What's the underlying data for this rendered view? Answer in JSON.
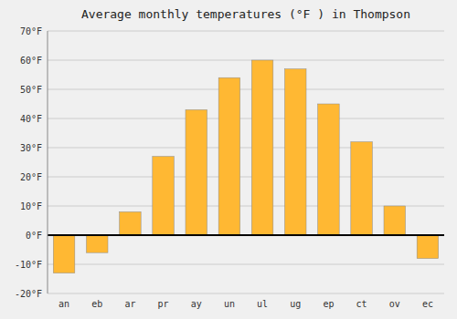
{
  "chart_data": {
    "type": "bar",
    "title": "Average monthly temperatures (°F ) in Thompson",
    "categories": [
      "an",
      "eb",
      "ar",
      "pr",
      "ay",
      "un",
      "ul",
      "ug",
      "ep",
      "ct",
      "ov",
      "ec"
    ],
    "values": [
      -13,
      -6,
      8,
      27,
      43,
      54,
      60,
      57,
      45,
      32,
      10,
      -8
    ],
    "color": "#FFB833",
    "ylim": [
      -20,
      70
    ],
    "yticks": [
      {
        "value": -20,
        "label": "-20°F"
      },
      {
        "value": -10,
        "label": "-10°F"
      },
      {
        "value": 0,
        "label": "0°F"
      },
      {
        "value": 10,
        "label": "10°F"
      },
      {
        "value": 20,
        "label": "20°F"
      },
      {
        "value": 30,
        "label": "30°F"
      },
      {
        "value": 40,
        "label": "40°F"
      },
      {
        "value": 50,
        "label": "50°F"
      },
      {
        "value": 60,
        "label": "60°F"
      },
      {
        "value": 70,
        "label": "70°F"
      }
    ],
    "grid": true
  }
}
